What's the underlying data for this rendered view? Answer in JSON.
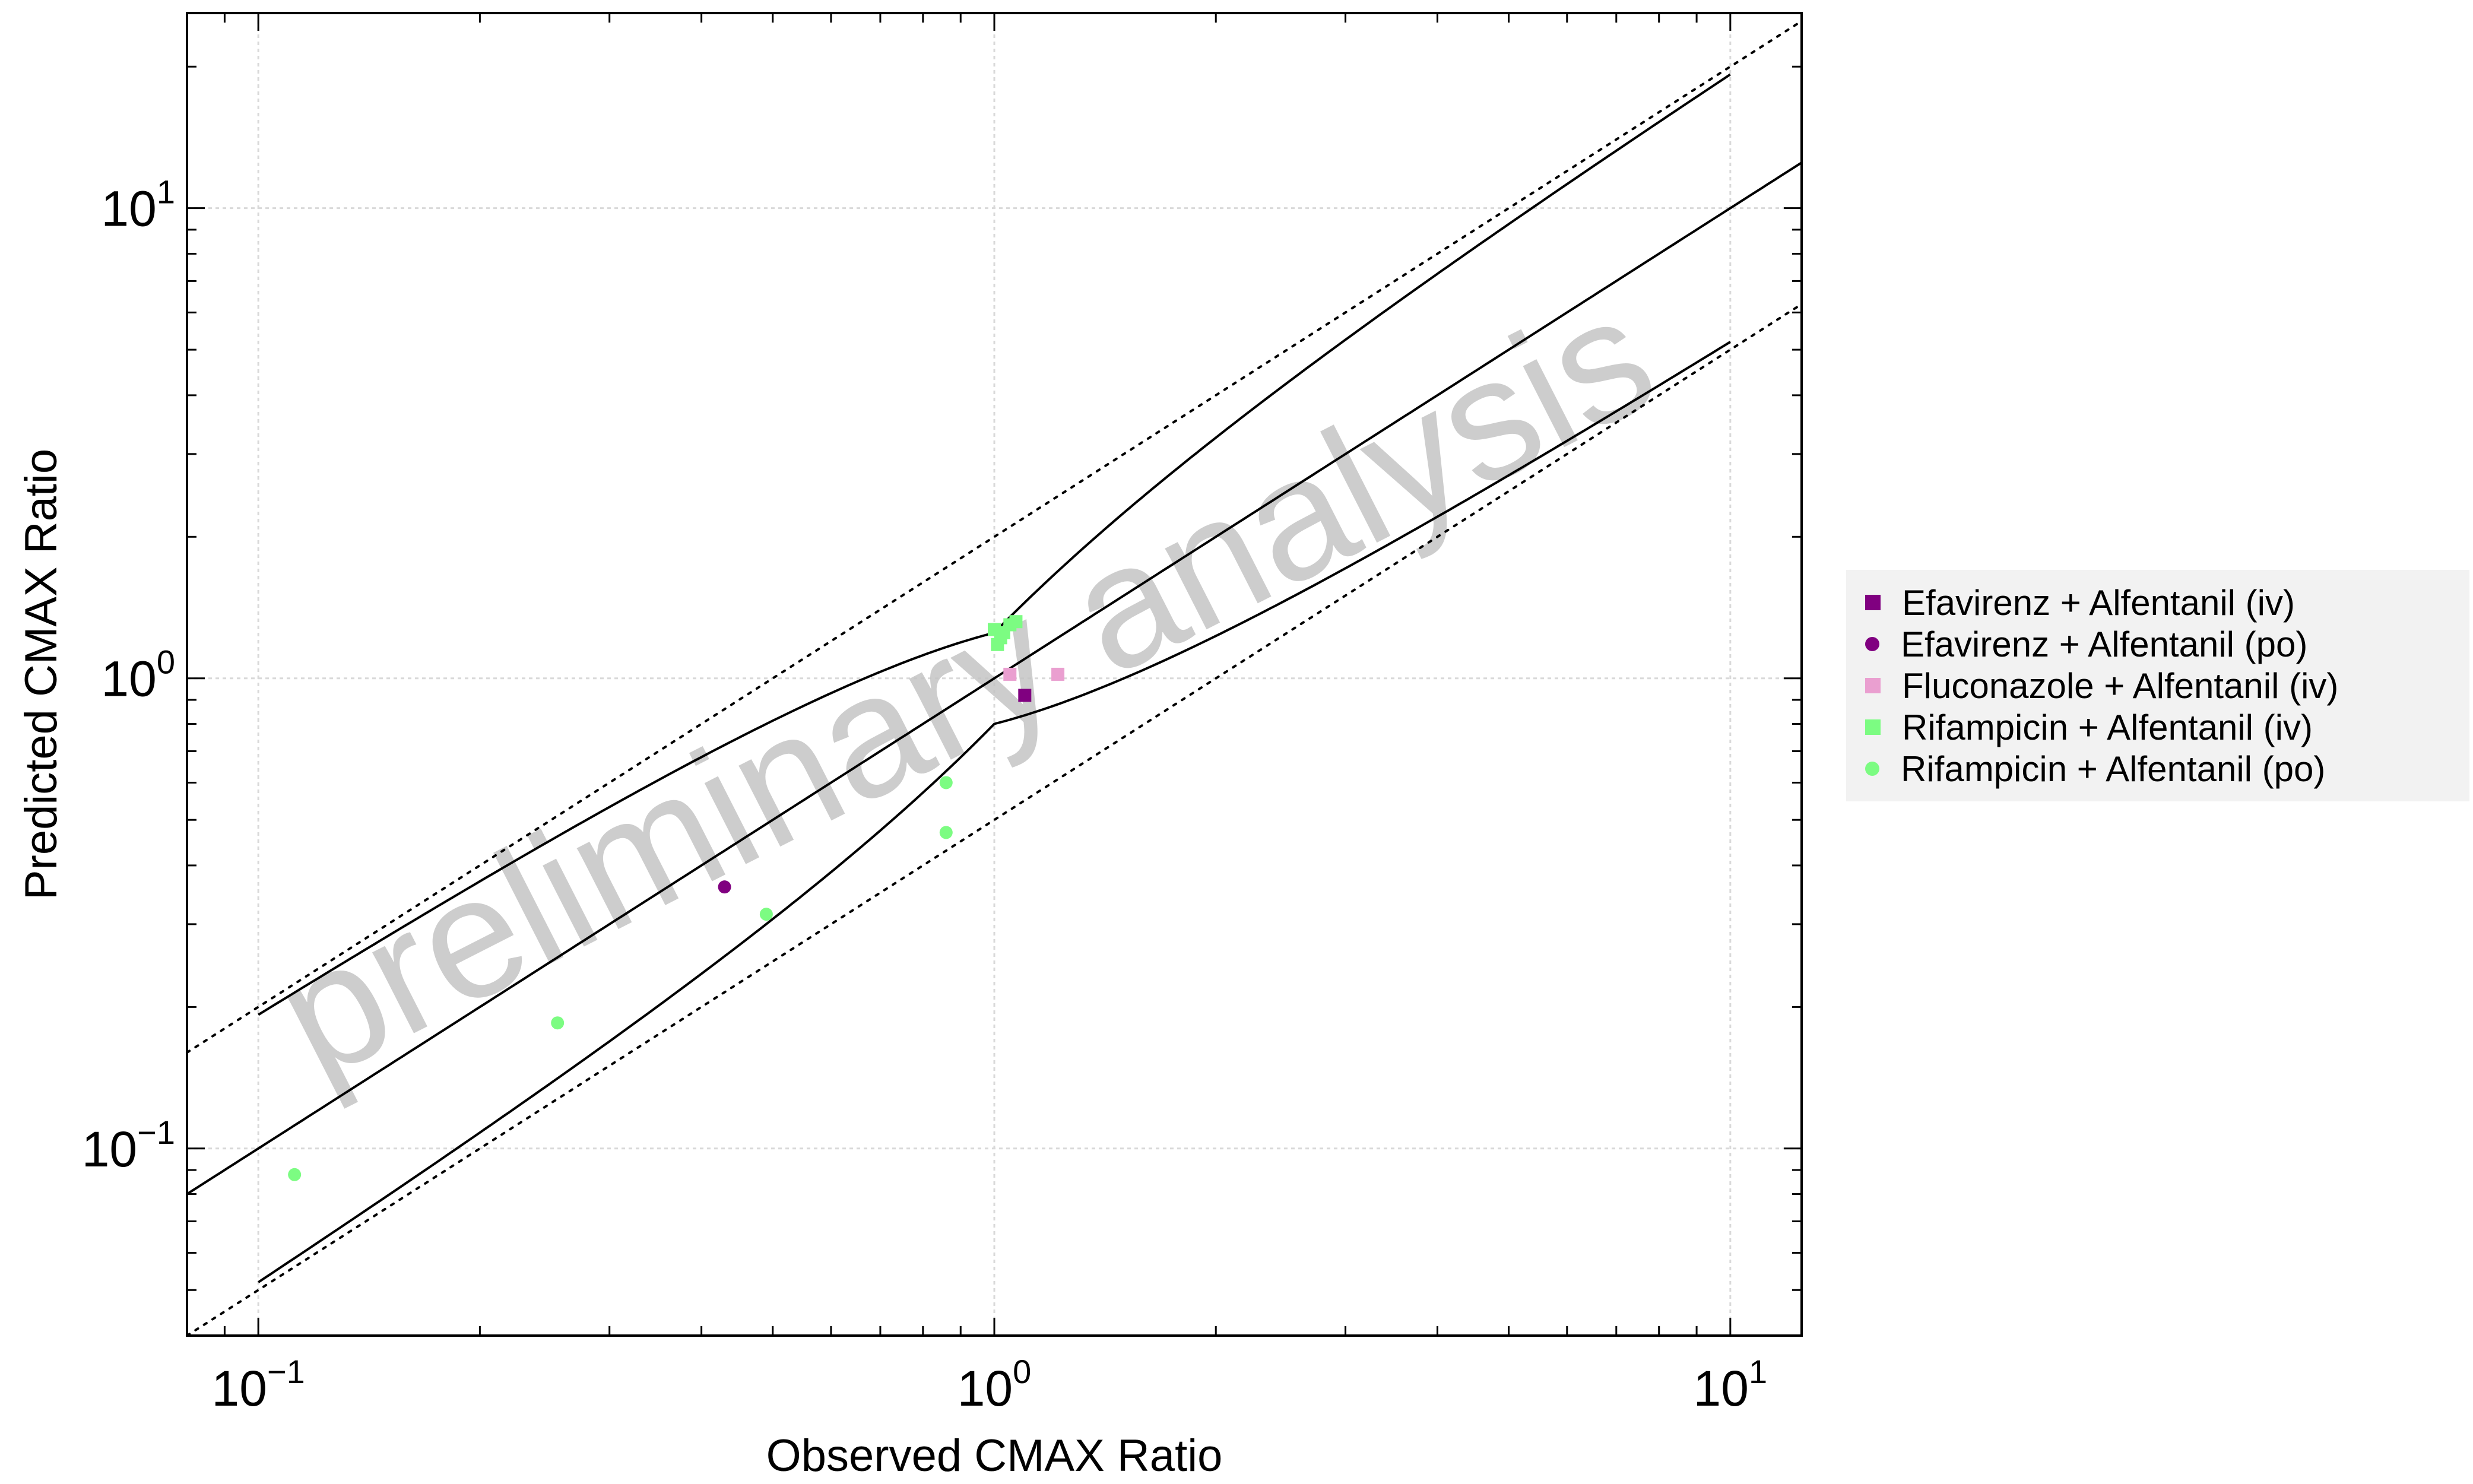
{
  "chart_data": {
    "type": "scatter",
    "xlabel": "Observed CMAX Ratio",
    "ylabel": "Predicted CMAX Ratio",
    "watermark": "preliminary analysis",
    "x_scale": "log",
    "y_scale": "log",
    "xlim": [
      0.08,
      12.5
    ],
    "ylim": [
      0.04,
      26
    ],
    "x_ticks": [
      0.1,
      1,
      10
    ],
    "y_ticks": [
      0.1,
      1,
      10
    ],
    "tick_labels": {
      "base": "10",
      "exponents": [
        "−1",
        "0",
        "1"
      ]
    },
    "grid": true,
    "legend_position": "right",
    "series": [
      {
        "name": "Efavirenz + Alfentanil (iv)",
        "marker": "square",
        "color": "#800080",
        "points": [
          [
            1.1,
            0.92
          ]
        ]
      },
      {
        "name": "Efavirenz + Alfentanil (po)",
        "marker": "circle",
        "color": "#800080",
        "points": [
          [
            0.43,
            0.36
          ]
        ]
      },
      {
        "name": "Fluconazole + Alfentanil (iv)",
        "marker": "square",
        "color": "#ea9fd0",
        "points": [
          [
            1.05,
            1.02
          ],
          [
            1.22,
            1.02
          ]
        ]
      },
      {
        "name": "Rifampicin + Alfentanil (iv)",
        "marker": "square",
        "color": "#7cfc82",
        "points": [
          [
            1.0,
            1.27
          ],
          [
            1.02,
            1.22
          ],
          [
            1.03,
            1.25
          ],
          [
            1.05,
            1.3
          ],
          [
            1.07,
            1.32
          ],
          [
            1.01,
            1.18
          ]
        ]
      },
      {
        "name": "Rifampicin + Alfentanil (po)",
        "marker": "circle",
        "color": "#7cfc82",
        "points": [
          [
            0.112,
            0.088
          ],
          [
            0.255,
            0.185
          ],
          [
            0.49,
            0.315
          ],
          [
            0.86,
            0.6
          ],
          [
            0.86,
            0.47
          ]
        ]
      }
    ]
  }
}
